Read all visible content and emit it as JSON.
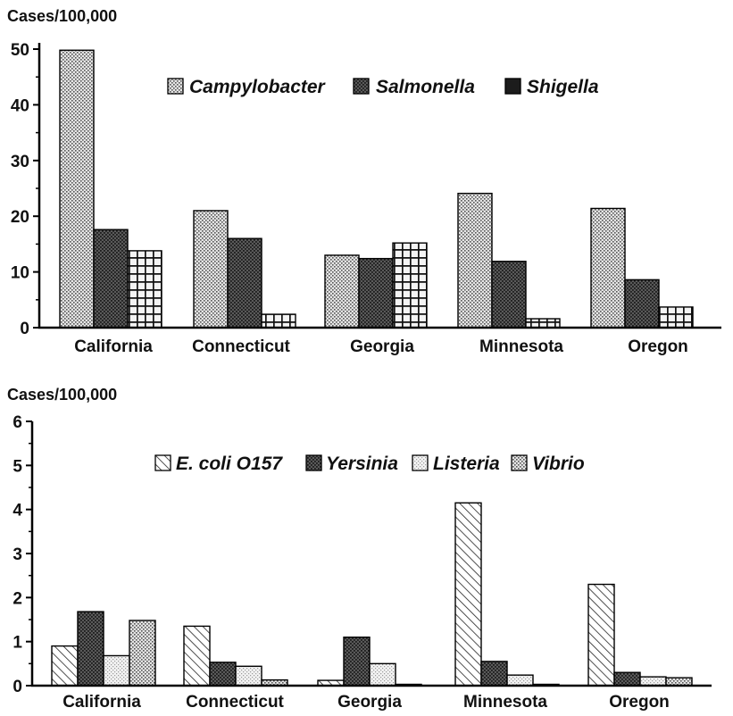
{
  "chart_data": [
    {
      "type": "bar",
      "ylabel": "Cases/100,000",
      "ylim": [
        0,
        50
      ],
      "yticks": [
        0,
        10,
        20,
        30,
        40,
        50
      ],
      "categories": [
        "California",
        "Connecticut",
        "Georgia",
        "Minnesota",
        "Oregon"
      ],
      "legend_position": "top-right",
      "series": [
        {
          "name": "Campylobacter",
          "pattern": "dots",
          "values": [
            49.8,
            21.0,
            13.0,
            24.1,
            21.4
          ]
        },
        {
          "name": "Salmonella",
          "pattern": "dark-dots",
          "values": [
            17.6,
            16.0,
            12.4,
            11.9,
            8.6
          ]
        },
        {
          "name": "Shigella",
          "pattern": "grid",
          "values": [
            13.8,
            2.4,
            15.2,
            1.6,
            3.7
          ]
        }
      ]
    },
    {
      "type": "bar",
      "ylabel": "Cases/100,000",
      "ylim": [
        0,
        6
      ],
      "yticks": [
        0,
        1,
        2,
        3,
        4,
        5,
        6
      ],
      "categories": [
        "California",
        "Connecticut",
        "Georgia",
        "Minnesota",
        "Oregon"
      ],
      "legend_position": "top-right",
      "series": [
        {
          "name": "E. coli O157",
          "pattern": "hatch",
          "values": [
            0.9,
            1.35,
            0.12,
            4.15,
            2.3
          ]
        },
        {
          "name": "Yersinia",
          "pattern": "dark-dots",
          "values": [
            1.68,
            0.53,
            1.1,
            0.55,
            0.3
          ]
        },
        {
          "name": "Listeria",
          "pattern": "light-dots",
          "values": [
            0.68,
            0.44,
            0.5,
            0.24,
            0.2
          ]
        },
        {
          "name": "Vibrio",
          "pattern": "dots",
          "values": [
            1.48,
            0.13,
            0.03,
            0.0,
            0.18
          ]
        }
      ]
    }
  ]
}
